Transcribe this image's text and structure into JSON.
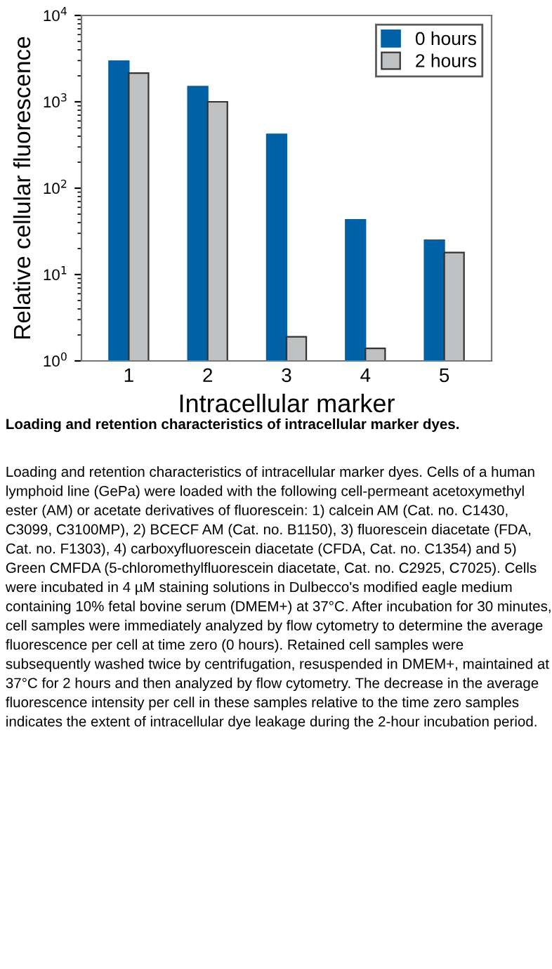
{
  "chart_data": {
    "type": "bar",
    "xlabel": "Intracellular marker",
    "ylabel": "Relative cellular fluorescence",
    "categories": [
      "1",
      "2",
      "3",
      "4",
      "5"
    ],
    "series": [
      {
        "name": "0 hours",
        "color": "#0062a6",
        "values": [
          2950,
          1500,
          420,
          43,
          25
        ]
      },
      {
        "name": "2 hours",
        "color": "#bfc0c2",
        "values": [
          2150,
          1000,
          1.9,
          1.4,
          18
        ]
      }
    ],
    "log": "y",
    "ylim": [
      1,
      10000
    ],
    "yticks": [
      {
        "value": 1,
        "label": "10$^{0}$"
      },
      {
        "value": 10,
        "label": "10$^{1}$"
      },
      {
        "value": 100,
        "label": "10$^{2}$"
      },
      {
        "value": 1000,
        "label": "10$^{3}$"
      },
      {
        "value": 10000,
        "label": "10$^{4}$"
      }
    ],
    "legend": "top right",
    "grid": false,
    "annotations": [
      "Loading and retention characteristics of intracellular marker dyes.",
      "Loading and retention characteristics of intracellular marker dyes. Cells of a human lymphoid line (GePa) were loaded with the following cell-permeant acetoxymethyl ester (AM) or acetate derivatives of fluorescein: 1) calcein AM (Cat. no. C1430, C3099, C3100MP), 2) BCECF AM (Cat. no. B1150), 3) fluorescein diacetate (FDA, Cat. no. F1303), 4) carboxyfluorescein diacetate (CFDA, Cat. no. C1354) and 5) Green CMFDA (5-chloromethylfluorescein diacetate, Cat. no. C2925, C7025). Cells were incubated in 4 µM staining solutions in Dulbecco's modified eagle medium containing 10% fetal bovine serum (DMEM+) at 37°C. After incubation for 30 minutes, cell samples were immediately analyzed by flow cytometry to determine the average fluorescence per cell at time zero (0 hours). Retained cell samples were subsequently washed twice by centrifugation, resuspended in DMEM+, maintained at 37°C for 2 hours and then analyzed by flow cytometry. The decrease in the average fluorescence intensity per cell in these samples relative to the time zero samples indicates the extent of intracellular dye leakage during the 2-hour incubation period."
    ]
  }
}
